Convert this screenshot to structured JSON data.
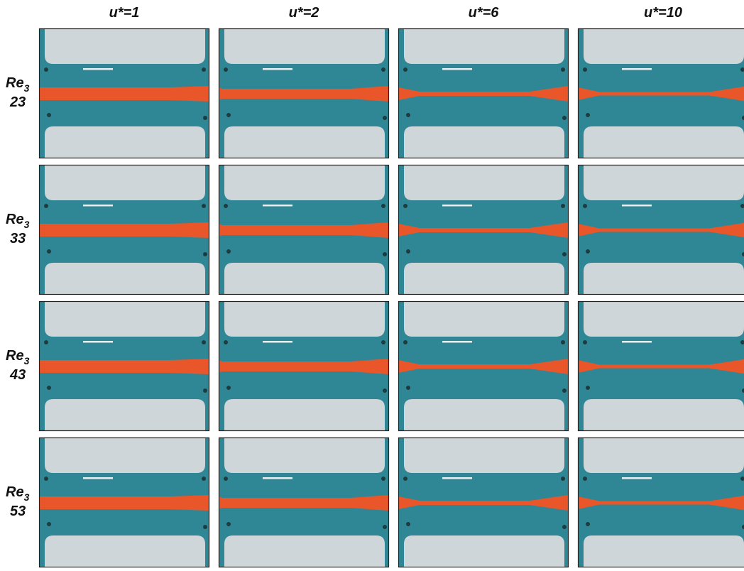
{
  "columns": [
    "u*=1",
    "u*=2",
    "u*=6",
    "u*=10"
  ],
  "rows": [
    {
      "symbol": "Re",
      "subscript": "3",
      "value": "23"
    },
    {
      "symbol": "Re",
      "subscript": "3",
      "value": "33"
    },
    {
      "symbol": "Re",
      "subscript": "3",
      "value": "43"
    },
    {
      "symbol": "Re",
      "subscript": "3",
      "value": "53"
    }
  ]
}
